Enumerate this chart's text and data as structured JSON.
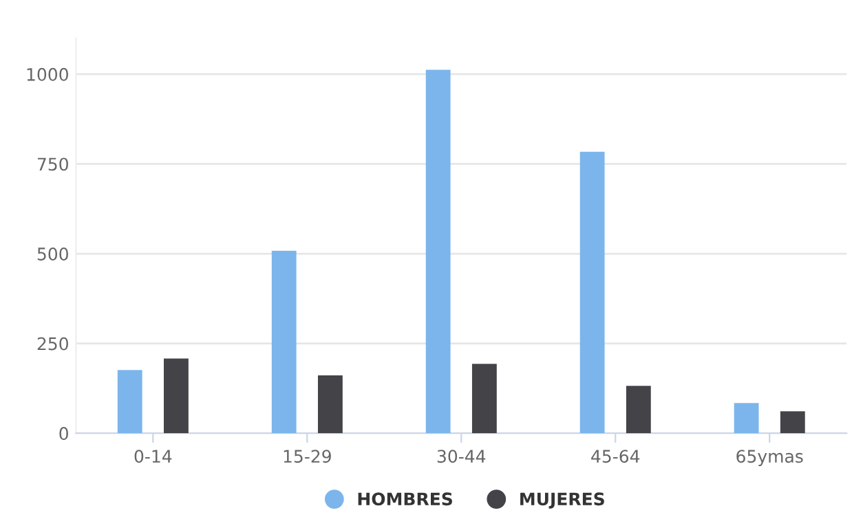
{
  "chart_data": {
    "type": "bar",
    "categories": [
      "0-14",
      "15-29",
      "30-44",
      "45-64",
      "65ymas"
    ],
    "series": [
      {
        "name": "HOMBRES",
        "color": "#7cb5ec",
        "values": [
          176,
          508,
          1012,
          784,
          84
        ]
      },
      {
        "name": "MUJERES",
        "color": "#434348",
        "values": [
          208,
          161,
          193,
          132,
          61
        ]
      }
    ],
    "ylim": [
      0,
      1100
    ],
    "yticks": [
      0,
      250,
      500,
      750,
      1000
    ],
    "grid": "y",
    "legend": "bottom"
  }
}
